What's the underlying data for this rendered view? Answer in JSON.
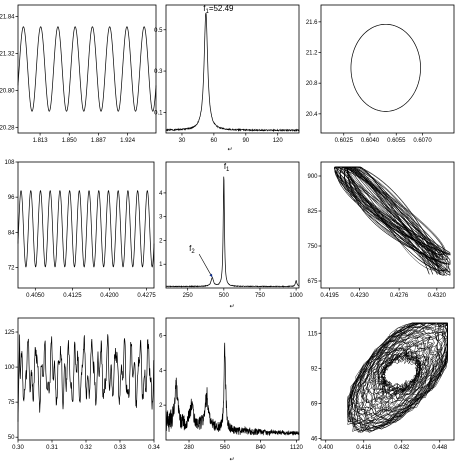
{
  "chart_data": [
    {
      "id": "r1c1",
      "type": "line",
      "signal": "sine",
      "cycles": 8,
      "amplitude": 0.6,
      "offset": 0.5,
      "xlim": [
        1.785,
        1.96
      ],
      "ylim": [
        20.2,
        22.0
      ],
      "xticks": [
        1.813,
        1.85,
        1.887,
        1.924
      ],
      "xtick_labels": [
        "1.813",
        "1.850",
        "1.887",
        "1.924"
      ],
      "yticks": [
        20.28,
        20.8,
        21.32,
        21.84
      ],
      "ytick_labels": [
        "20.28",
        "20.80",
        "21.32",
        "21.84"
      ]
    },
    {
      "id": "r1c2",
      "type": "line",
      "signal": "spectrum",
      "peaks": [
        {
          "x": 52.49,
          "y": 0.57,
          "w": 2.0
        }
      ],
      "floor": 0.01,
      "xlim": [
        15,
        140
      ],
      "ylim": [
        0,
        0.62
      ],
      "xticks": [
        30,
        60,
        90,
        120
      ],
      "xtick_labels": [
        "30",
        "60",
        "90",
        "120"
      ],
      "yticks": [
        0.1,
        0.3,
        0.5
      ],
      "ytick_labels": [
        "0.1",
        "0.3",
        "0.5"
      ],
      "annotations": [
        {
          "name": "f1",
          "text": "f",
          "sub": "1",
          "suffix": "=52.49",
          "x": 50,
          "y": 0.59
        }
      ]
    },
    {
      "id": "r1c3",
      "type": "line",
      "signal": "ellipse",
      "center": [
        0.6049,
        21.0
      ],
      "radius": [
        0.0021,
        0.6
      ],
      "tilt": -0.35,
      "xlim": [
        0.6012,
        0.6088
      ],
      "ylim": [
        20.15,
        21.82
      ],
      "xticks": [
        0.6025,
        0.604,
        0.6055,
        0.607
      ],
      "xtick_labels": [
        "0.6025",
        "0.6040",
        "0.6055",
        "0.6070"
      ],
      "yticks": [
        20.4,
        20.8,
        21.2,
        21.6
      ],
      "ytick_labels": [
        "20.4",
        "20.8",
        "21.2",
        "21.6"
      ]
    },
    {
      "id": "r2c1",
      "type": "line",
      "signal": "sine",
      "cycles": 14,
      "amplitude": 0.55,
      "offset": 0.47,
      "xlim": [
        0.4015,
        0.429
      ],
      "ylim": [
        65,
        108
      ],
      "xticks": [
        0.405,
        0.4125,
        0.42,
        0.4275
      ],
      "xtick_labels": [
        "0.4050",
        "0.4125",
        "0.4200",
        "0.4275"
      ],
      "yticks": [
        72,
        84,
        96,
        108
      ],
      "ytick_labels": [
        "72",
        "84",
        "96",
        "108"
      ]
    },
    {
      "id": "r2c2",
      "type": "line",
      "signal": "spectrum",
      "peaks": [
        {
          "x": 500,
          "y": 4.7,
          "w": 5
        },
        {
          "x": 420,
          "y": 0.35,
          "w": 10
        },
        {
          "x": 1000,
          "y": 0.25,
          "w": 6
        }
      ],
      "floor": 0.05,
      "xlim": [
        100,
        1020
      ],
      "ylim": [
        0,
        5.3
      ],
      "xticks": [
        250,
        500,
        750,
        1000
      ],
      "xtick_labels": [
        "250",
        "500",
        "750",
        "1000"
      ],
      "yticks": [
        1,
        2,
        3,
        4
      ],
      "ytick_labels": [
        "1",
        "2",
        "3",
        "4"
      ],
      "annotations": [
        {
          "name": "f1",
          "text": "f",
          "sub": "1",
          "x": 500,
          "y": 5.0
        },
        {
          "name": "f2",
          "text": "f",
          "sub": "2",
          "x": 260,
          "y": 1.55,
          "arrow_to": [
            420,
            0.45
          ]
        }
      ]
    },
    {
      "id": "r2c3",
      "type": "line",
      "signal": "attractor",
      "xlim": [
        0.4185,
        0.434
      ],
      "ylim": [
        660,
        930
      ],
      "xticks": [
        0.4195,
        0.423,
        0.4276,
        0.432
      ],
      "xtick_labels": [
        "0.4195",
        "0.4230",
        "0.4276",
        "0.4320"
      ],
      "yticks": [
        675,
        750,
        825,
        900
      ],
      "ytick_labels": [
        "675",
        "750",
        "825",
        "900"
      ]
    },
    {
      "id": "r3c1",
      "type": "line",
      "signal": "chaos",
      "xlim": [
        0.3,
        0.34
      ],
      "ylim": [
        48,
        135
      ],
      "xticks": [
        0.3,
        0.31,
        0.32,
        0.33,
        0.34
      ],
      "xtick_labels": [
        "0.30",
        "0.31",
        "0.32",
        "0.33",
        "0.34"
      ],
      "yticks": [
        50,
        75,
        100,
        125
      ],
      "ytick_labels": [
        "50",
        "75",
        "100",
        "125"
      ]
    },
    {
      "id": "r3c2",
      "type": "line",
      "signal": "broadband",
      "peaks": [
        {
          "x": 560,
          "y": 5.8,
          "w": 7
        },
        {
          "x": 180,
          "y": 2.6,
          "w": 12
        },
        {
          "x": 420,
          "y": 2.0,
          "w": 18
        },
        {
          "x": 300,
          "y": 1.5,
          "w": 15
        }
      ],
      "xlim": [
        100,
        1140
      ],
      "ylim": [
        0,
        7
      ],
      "xticks": [
        280,
        560,
        840,
        1120
      ],
      "xtick_labels": [
        "280",
        "560",
        "840",
        "1120"
      ],
      "yticks": [
        2,
        4,
        6
      ],
      "ytick_labels": [
        "2",
        "4",
        "6"
      ]
    },
    {
      "id": "r3c3",
      "type": "line",
      "signal": "cloud",
      "xlim": [
        0.398,
        0.454
      ],
      "ylim": [
        45,
        125
      ],
      "xticks": [
        0.4,
        0.416,
        0.432,
        0.448
      ],
      "xtick_labels": [
        "0.400",
        "0.416",
        "0.432",
        "0.448"
      ],
      "yticks": [
        46,
        69,
        92,
        115
      ],
      "ytick_labels": [
        "46",
        "69",
        "92",
        "115"
      ]
    }
  ],
  "separators": [
    "↵",
    "↵",
    "↵"
  ]
}
